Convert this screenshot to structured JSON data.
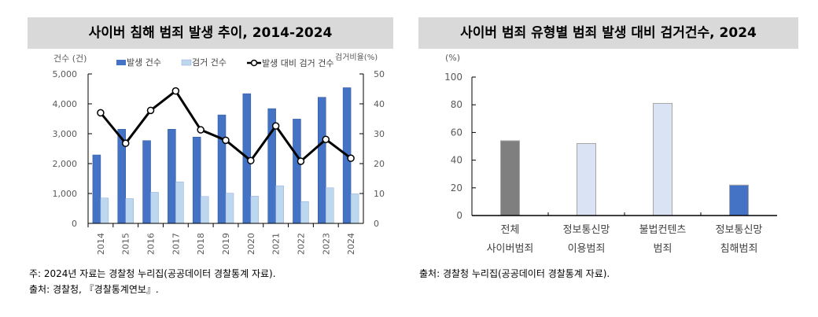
{
  "left": {
    "title": "사이버 침해 범죄 발생 추이, 2014-2024",
    "notes": [
      "주: 2024년 자료는 경찰청 누리집(공공데이터 경찰통계 자료).",
      "출처: 경찰청, 『경찰통계연보』."
    ]
  },
  "right": {
    "title": "사이버 범죄 유형별 범죄 발생 대비 검거건수, 2024",
    "notes": [
      "출처: 경찰청 누리집(공공데이터 경찰통계 자료)."
    ]
  },
  "chart_data": [
    {
      "type": "bar",
      "title": "사이버 침해 범죄 발생 추이, 2014-2024",
      "ylabel": "건수 (건)",
      "y2label": "검거비율(%)",
      "ylim": [
        0,
        5000
      ],
      "y2lim": [
        0,
        50
      ],
      "yticks": [
        "0",
        "1,000",
        "2,000",
        "3,000",
        "4,000",
        "5,000"
      ],
      "y2ticks": [
        "0",
        "10",
        "20",
        "30",
        "40",
        "50"
      ],
      "categories": [
        "2014",
        "2015",
        "2016",
        "2017",
        "2018",
        "2019",
        "2020",
        "2021",
        "2022",
        "2023",
        "2024"
      ],
      "series": [
        {
          "name": "발생 건수",
          "type": "bar",
          "color": "#4472c4",
          "values": [
            2290,
            3150,
            2770,
            3150,
            2890,
            3630,
            4340,
            3840,
            3490,
            4220,
            4540
          ]
        },
        {
          "name": "검거 건수",
          "type": "bar",
          "color": "#bdd7ee",
          "values": [
            850,
            830,
            1040,
            1390,
            900,
            1010,
            910,
            1260,
            730,
            1190,
            990
          ]
        },
        {
          "name": "발생 대비 검거 건수",
          "type": "line",
          "axis": "right",
          "color": "#000000",
          "values": [
            37.0,
            26.8,
            37.8,
            44.3,
            31.3,
            27.8,
            21.0,
            32.6,
            20.8,
            28.1,
            21.8
          ]
        }
      ],
      "legend": "top"
    },
    {
      "type": "bar",
      "title": "사이버 범죄 유형별 범죄 발생 대비 검거건수, 2024",
      "ylabel": "(%)",
      "ylim": [
        0,
        100
      ],
      "yticks": [
        "0",
        "20",
        "40",
        "60",
        "80",
        "100"
      ],
      "categories": [
        [
          "전체",
          "사이버범죄"
        ],
        [
          "정보통신망",
          "이용범죄"
        ],
        [
          "불법컨텐츠",
          "범죄"
        ],
        [
          "정보통신망",
          "침해범죄"
        ]
      ],
      "values": [
        54,
        52,
        81,
        22
      ],
      "colors": [
        "#7f7f7f",
        "#dae3f3",
        "#dae3f3",
        "#4472c4"
      ]
    }
  ]
}
